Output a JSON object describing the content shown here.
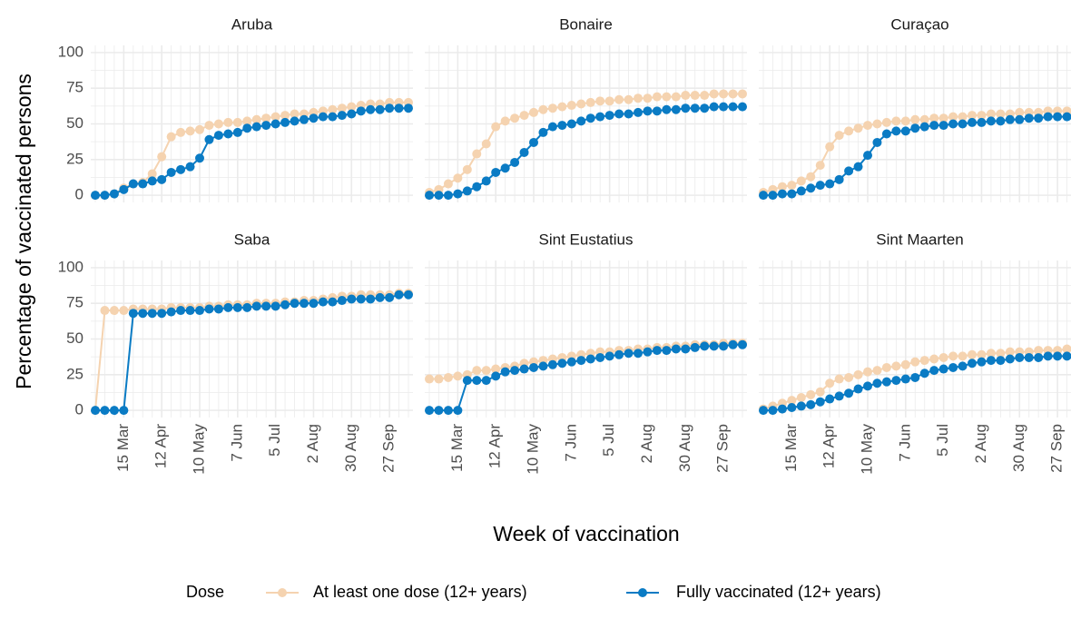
{
  "x_label": "Week of vaccination",
  "y_label": "Percentage of vaccinated persons",
  "legend_title": "Dose",
  "chart_data": [
    {
      "type": "line",
      "title": "Aruba",
      "categories": [
        null,
        null,
        null,
        "15 Mar",
        null,
        null,
        null,
        "12 Apr",
        null,
        null,
        null,
        "10 May",
        null,
        null,
        null,
        "7 Jun",
        null,
        null,
        null,
        "5 Jul",
        null,
        null,
        null,
        "2 Aug",
        null,
        null,
        null,
        "30 Aug",
        null,
        null,
        null,
        "27 Sep",
        null,
        null
      ],
      "ylim": [
        -5,
        105
      ],
      "yticks": [
        0,
        25,
        50,
        75,
        100
      ],
      "grid": true,
      "series": [
        {
          "name": "At least one dose (12+ years)",
          "color": "#f5d3b0",
          "values": [
            0,
            0,
            1,
            5,
            8,
            9,
            15,
            27,
            41,
            44,
            45,
            46,
            49,
            50,
            51,
            51,
            52,
            53,
            54,
            55,
            56,
            57,
            57,
            58,
            59,
            60,
            61,
            62,
            63,
            64,
            64,
            65,
            65,
            65
          ]
        },
        {
          "name": "Fully vaccinated (12+ years)",
          "color": "#0a7bc4",
          "values": [
            0,
            0,
            1,
            4,
            8,
            8,
            10,
            11,
            16,
            18,
            20,
            26,
            39,
            42,
            43,
            44,
            47,
            48,
            49,
            50,
            51,
            52,
            53,
            54,
            55,
            55,
            56,
            57,
            59,
            60,
            60,
            61,
            61,
            61
          ]
        }
      ]
    },
    {
      "type": "line",
      "title": "Bonaire",
      "categories": [
        null,
        null,
        null,
        "15 Mar",
        null,
        null,
        null,
        "12 Apr",
        null,
        null,
        null,
        "10 May",
        null,
        null,
        null,
        "7 Jun",
        null,
        null,
        null,
        "5 Jul",
        null,
        null,
        null,
        "2 Aug",
        null,
        null,
        null,
        "30 Aug",
        null,
        null,
        null,
        "27 Sep",
        null,
        null
      ],
      "ylim": [
        -5,
        105
      ],
      "yticks": [
        0,
        25,
        50,
        75,
        100
      ],
      "grid": true,
      "series": [
        {
          "name": "At least one dose (12+ years)",
          "color": "#f5d3b0",
          "values": [
            2,
            4,
            8,
            12,
            18,
            29,
            36,
            48,
            52,
            54,
            56,
            58,
            60,
            61,
            62,
            63,
            64,
            65,
            66,
            66,
            67,
            67,
            68,
            68,
            69,
            69,
            69,
            70,
            70,
            70,
            71,
            71,
            71,
            71
          ]
        },
        {
          "name": "Fully vaccinated (12+ years)",
          "color": "#0a7bc4",
          "values": [
            0,
            0,
            0,
            1,
            3,
            6,
            10,
            16,
            19,
            23,
            30,
            37,
            44,
            48,
            49,
            50,
            52,
            54,
            55,
            56,
            57,
            57,
            58,
            59,
            59,
            60,
            60,
            61,
            61,
            61,
            62,
            62,
            62,
            62
          ]
        }
      ]
    },
    {
      "type": "line",
      "title": "Curaçao",
      "categories": [
        null,
        null,
        null,
        "15 Mar",
        null,
        null,
        null,
        "12 Apr",
        null,
        null,
        null,
        "10 May",
        null,
        null,
        null,
        "7 Jun",
        null,
        null,
        null,
        "5 Jul",
        null,
        null,
        null,
        "2 Aug",
        null,
        null,
        null,
        "30 Aug",
        null,
        null,
        null,
        "27 Sep",
        null,
        null
      ],
      "ylim": [
        -5,
        105
      ],
      "yticks": [
        0,
        25,
        50,
        75,
        100
      ],
      "grid": true,
      "series": [
        {
          "name": "At least one dose (12+ years)",
          "color": "#f5d3b0",
          "values": [
            2,
            4,
            6,
            7,
            10,
            13,
            21,
            34,
            42,
            45,
            47,
            49,
            50,
            51,
            52,
            52,
            53,
            53,
            54,
            54,
            55,
            55,
            56,
            56,
            57,
            57,
            57,
            58,
            58,
            58,
            59,
            59,
            59,
            59
          ]
        },
        {
          "name": "Fully vaccinated (12+ years)",
          "color": "#0a7bc4",
          "values": [
            0,
            0,
            1,
            1,
            3,
            5,
            7,
            8,
            11,
            17,
            20,
            28,
            37,
            43,
            45,
            45,
            47,
            48,
            49,
            49,
            50,
            50,
            51,
            51,
            52,
            52,
            53,
            53,
            54,
            54,
            55,
            55,
            55,
            55
          ]
        }
      ]
    },
    {
      "type": "line",
      "title": "Saba",
      "categories": [
        null,
        null,
        null,
        "15 Mar",
        null,
        null,
        null,
        "12 Apr",
        null,
        null,
        null,
        "10 May",
        null,
        null,
        null,
        "7 Jun",
        null,
        null,
        null,
        "5 Jul",
        null,
        null,
        null,
        "2 Aug",
        null,
        null,
        null,
        "30 Aug",
        null,
        null,
        null,
        "27 Sep",
        null,
        null
      ],
      "ylim": [
        -5,
        105
      ],
      "yticks": [
        0,
        25,
        50,
        75,
        100
      ],
      "grid": true,
      "series": [
        {
          "name": "At least one dose (12+ years)",
          "color": "#f5d3b0",
          "values": [
            0,
            70,
            70,
            70,
            71,
            71,
            71,
            71,
            72,
            72,
            72,
            72,
            73,
            73,
            74,
            74,
            74,
            75,
            75,
            75,
            76,
            76,
            77,
            77,
            78,
            79,
            80,
            80,
            81,
            81,
            81,
            81,
            82,
            82
          ]
        },
        {
          "name": "Fully vaccinated (12+ years)",
          "color": "#0a7bc4",
          "values": [
            0,
            0,
            0,
            0,
            68,
            68,
            68,
            68,
            69,
            70,
            70,
            70,
            71,
            71,
            72,
            72,
            72,
            73,
            73,
            73,
            74,
            75,
            75,
            75,
            76,
            76,
            77,
            78,
            78,
            78,
            79,
            79,
            81,
            81
          ]
        }
      ]
    },
    {
      "type": "line",
      "title": "Sint Eustatius",
      "categories": [
        null,
        null,
        null,
        "15 Mar",
        null,
        null,
        null,
        "12 Apr",
        null,
        null,
        null,
        "10 May",
        null,
        null,
        null,
        "7 Jun",
        null,
        null,
        null,
        "5 Jul",
        null,
        null,
        null,
        "2 Aug",
        null,
        null,
        null,
        "30 Aug",
        null,
        null,
        null,
        "27 Sep",
        null,
        null
      ],
      "ylim": [
        -5,
        105
      ],
      "yticks": [
        0,
        25,
        50,
        75,
        100
      ],
      "grid": true,
      "series": [
        {
          "name": "At least one dose (12+ years)",
          "color": "#f5d3b0",
          "values": [
            22,
            22,
            23,
            24,
            25,
            28,
            28,
            29,
            30,
            31,
            33,
            34,
            35,
            36,
            37,
            38,
            39,
            40,
            41,
            41,
            42,
            42,
            43,
            43,
            44,
            44,
            45,
            45,
            46,
            46,
            46,
            47,
            47,
            47
          ]
        },
        {
          "name": "Fully vaccinated (12+ years)",
          "color": "#0a7bc4",
          "values": [
            0,
            0,
            0,
            0,
            21,
            21,
            21,
            24,
            27,
            28,
            29,
            30,
            31,
            32,
            33,
            34,
            35,
            36,
            37,
            38,
            39,
            40,
            40,
            41,
            42,
            42,
            43,
            43,
            44,
            45,
            45,
            45,
            46,
            46
          ]
        }
      ]
    },
    {
      "type": "line",
      "title": "Sint Maarten",
      "categories": [
        null,
        null,
        null,
        "15 Mar",
        null,
        null,
        null,
        "12 Apr",
        null,
        null,
        null,
        "10 May",
        null,
        null,
        null,
        "7 Jun",
        null,
        null,
        null,
        "5 Jul",
        null,
        null,
        null,
        "2 Aug",
        null,
        null,
        null,
        "30 Aug",
        null,
        null,
        null,
        "27 Sep",
        null,
        null
      ],
      "ylim": [
        -5,
        105
      ],
      "yticks": [
        0,
        25,
        50,
        75,
        100
      ],
      "grid": true,
      "series": [
        {
          "name": "At least one dose (12+ years)",
          "color": "#f5d3b0",
          "values": [
            1,
            3,
            5,
            7,
            9,
            11,
            13,
            19,
            22,
            23,
            25,
            27,
            28,
            30,
            31,
            32,
            34,
            35,
            36,
            37,
            38,
            38,
            39,
            39,
            40,
            40,
            41,
            41,
            41,
            42,
            42,
            42,
            43,
            43
          ]
        },
        {
          "name": "Fully vaccinated (12+ years)",
          "color": "#0a7bc4",
          "values": [
            0,
            0,
            1,
            2,
            3,
            4,
            6,
            8,
            10,
            12,
            15,
            17,
            19,
            20,
            21,
            22,
            23,
            26,
            28,
            29,
            30,
            31,
            33,
            34,
            35,
            35,
            36,
            37,
            37,
            37,
            38,
            38,
            38,
            38
          ]
        }
      ]
    }
  ]
}
